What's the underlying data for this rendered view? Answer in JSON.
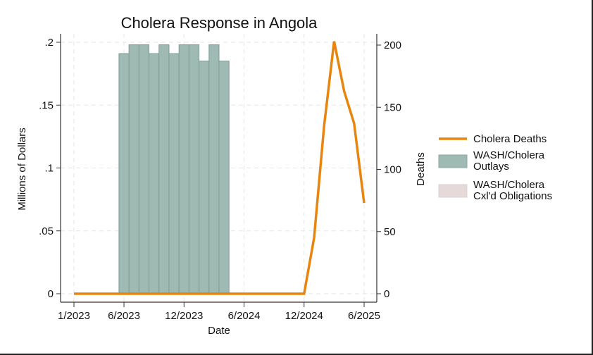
{
  "chart_data": {
    "type": "bar+line",
    "title": "Cholera Response in Angola",
    "xlabel": "Date",
    "ylabel_left": "Millions of Dollars",
    "ylabel_right": "Deaths",
    "x_ticks": [
      "1/2023",
      "6/2023",
      "12/2023",
      "6/2024",
      "12/2024",
      "6/2025"
    ],
    "y_left_ticks": [
      "0",
      ".05",
      ".1",
      ".15",
      ".2"
    ],
    "y_left_range": [
      0,
      0.2
    ],
    "y_right_ticks": [
      "0",
      "50",
      "100",
      "150",
      "200"
    ],
    "y_right_range": [
      0,
      200
    ],
    "grid": true,
    "legend_position": "right",
    "series": [
      {
        "name": "Cholera Deaths",
        "type": "line",
        "axis": "right",
        "color": "#e8850f",
        "x": [
          "1/2023",
          "2/2023",
          "3/2023",
          "4/2023",
          "5/2023",
          "6/2023",
          "7/2023",
          "8/2023",
          "9/2023",
          "10/2023",
          "11/2023",
          "12/2023",
          "1/2024",
          "2/2024",
          "3/2024",
          "4/2024",
          "5/2024",
          "6/2024",
          "7/2024",
          "8/2024",
          "9/2024",
          "10/2024",
          "11/2024",
          "12/2024",
          "1/2025",
          "2/2025",
          "3/2025",
          "4/2025",
          "5/2025",
          "6/2025"
        ],
        "values": [
          0,
          0,
          0,
          0,
          0,
          0,
          0,
          0,
          0,
          0,
          0,
          0,
          0,
          0,
          0,
          0,
          0,
          0,
          0,
          0,
          0,
          0,
          0,
          0,
          45,
          135,
          203,
          163,
          137,
          73
        ]
      },
      {
        "name": "WASH/Cholera Outlays",
        "type": "bar",
        "axis": "left",
        "color": "#9fb9b3",
        "x": [
          "6/2023",
          "7/2023",
          "8/2023",
          "9/2023",
          "10/2023",
          "11/2023",
          "12/2023",
          "1/2024",
          "2/2024",
          "3/2024",
          "4/2024"
        ],
        "values": [
          0.191,
          0.198,
          0.198,
          0.191,
          0.198,
          0.191,
          0.198,
          0.198,
          0.185,
          0.198,
          0.185
        ]
      },
      {
        "name": "WASH/Cholera Cxl'd Obligations",
        "type": "bar",
        "axis": "left",
        "color": "#e5d9d9",
        "x": [],
        "values": []
      }
    ]
  },
  "legend": {
    "items": [
      {
        "lines": [
          "Cholera Deaths"
        ],
        "swatch": "line",
        "color": "#e8850f"
      },
      {
        "lines": [
          "WASH/Cholera",
          "Outlays"
        ],
        "swatch": "box",
        "color": "#9fb9b3",
        "border": "#8aa7a0"
      },
      {
        "lines": [
          "WASH/Cholera",
          "Cxl'd Obligations"
        ],
        "swatch": "box",
        "color": "#e5d9d9",
        "border": "#ddd0d0"
      }
    ]
  }
}
